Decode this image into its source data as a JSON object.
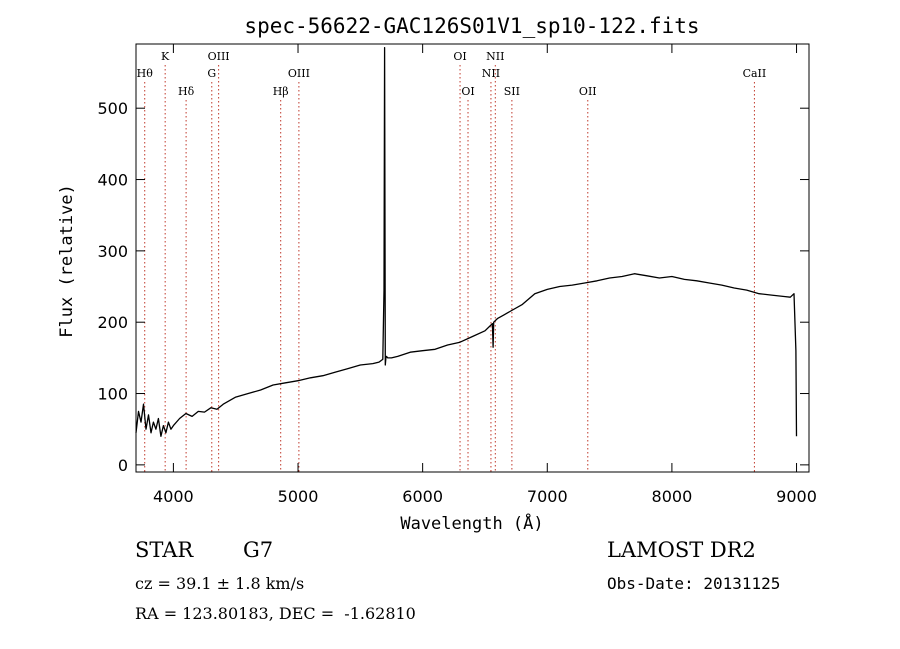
{
  "chart_data": {
    "type": "line",
    "title": "spec-56622-GAC126S01V1_sp10-122.fits",
    "xlabel": "Wavelength (Å)",
    "ylabel": "Flux (relative)",
    "xlim": [
      3700,
      9100
    ],
    "ylim": [
      -10,
      590
    ],
    "xticks": [
      4000,
      5000,
      6000,
      7000,
      8000,
      9000
    ],
    "yticks": [
      0,
      100,
      200,
      300,
      400,
      500
    ],
    "grid": false,
    "line_color": "#000000",
    "marker_color": "#c0392b",
    "series": [
      {
        "x": [
          3700,
          3720,
          3740,
          3760,
          3780,
          3800,
          3820,
          3840,
          3860,
          3880,
          3900,
          3920,
          3940,
          3960,
          3980,
          4000,
          4050,
          4100,
          4150,
          4200,
          4250,
          4300,
          4350,
          4400,
          4500,
          4600,
          4700,
          4800,
          4900,
          5000,
          5100,
          5200,
          5300,
          5400,
          5500,
          5600,
          5650,
          5680,
          5690,
          5695,
          5700,
          5705,
          5710,
          5720,
          5750,
          5800,
          5900,
          6000,
          6100,
          6200,
          6300,
          6400,
          6500,
          6560,
          6565,
          6570,
          6600,
          6650,
          6700,
          6800,
          6900,
          7000,
          7100,
          7200,
          7300,
          7400,
          7500,
          7600,
          7700,
          7800,
          7900,
          8000,
          8100,
          8200,
          8300,
          8400,
          8500,
          8600,
          8700,
          8800,
          8900,
          8950,
          8980,
          8995,
          9000
        ],
        "y": [
          45,
          75,
          60,
          85,
          50,
          70,
          45,
          60,
          50,
          65,
          40,
          55,
          45,
          60,
          50,
          55,
          65,
          72,
          68,
          75,
          74,
          80,
          78,
          85,
          95,
          100,
          105,
          112,
          115,
          118,
          122,
          125,
          130,
          135,
          140,
          142,
          144,
          148,
          245,
          585,
          140,
          150,
          152,
          150,
          150,
          152,
          158,
          160,
          162,
          168,
          172,
          180,
          188,
          198,
          165,
          200,
          205,
          210,
          215,
          225,
          240,
          246,
          250,
          252,
          255,
          258,
          262,
          264,
          268,
          265,
          262,
          264,
          260,
          258,
          255,
          252,
          248,
          245,
          240,
          238,
          236,
          235,
          240,
          160,
          40
        ]
      }
    ],
    "markers": [
      {
        "wl": 3770,
        "label": "Hθ",
        "row": 2
      },
      {
        "wl": 3934,
        "label": "K",
        "row": 1
      },
      {
        "wl": 4102,
        "label": "Hδ",
        "row": 3
      },
      {
        "wl": 4308,
        "label": "G",
        "row": 2
      },
      {
        "wl": 4363,
        "label": "OIII",
        "row": 1
      },
      {
        "wl": 4861,
        "label": "Hβ",
        "row": 3
      },
      {
        "wl": 5007,
        "label": "OIII",
        "row": 2
      },
      {
        "wl": 6300,
        "label": "OI",
        "row": 1
      },
      {
        "wl": 6364,
        "label": "OI",
        "row": 3
      },
      {
        "wl": 6548,
        "label": "NII",
        "row": 2
      },
      {
        "wl": 6583,
        "label": "NII",
        "row": 1
      },
      {
        "wl": 6716,
        "label": "SII",
        "row": 3
      },
      {
        "wl": 7325,
        "label": "OII",
        "row": 3
      },
      {
        "wl": 8662,
        "label": "CaII",
        "row": 2
      }
    ]
  },
  "info": {
    "class_label": "STAR",
    "subclass_label": "G7",
    "survey": "LAMOST DR2",
    "velocity": "cz = 39.1 ± 1.8 km/s",
    "obs_date": "Obs-Date: 20131125",
    "coords": "RA = 123.80183, DEC =  -1.62810"
  }
}
